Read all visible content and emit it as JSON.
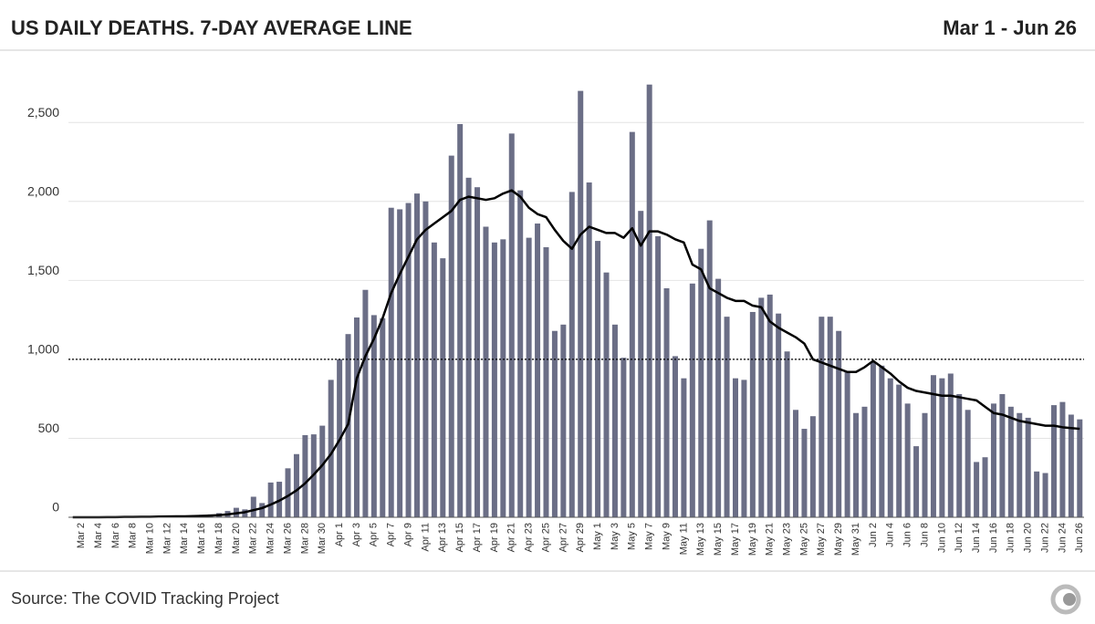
{
  "chart_data": {
    "type": "bar",
    "title": "US DAILY DEATHS. 7-DAY AVERAGE LINE",
    "date_range": "Mar 1 - Jun 26",
    "source": "Source: The COVID Tracking Project",
    "categories": [
      null,
      "Mar 2",
      null,
      "Mar 4",
      null,
      "Mar 6",
      null,
      "Mar 8",
      null,
      "Mar 10",
      null,
      "Mar 12",
      null,
      "Mar 14",
      null,
      "Mar 16",
      null,
      "Mar 18",
      null,
      "Mar 20",
      null,
      "Mar 22",
      null,
      "Mar 24",
      null,
      "Mar 26",
      null,
      "Mar 28",
      null,
      "Mar 30",
      null,
      "Apr 1",
      null,
      "Apr 3",
      null,
      "Apr 5",
      null,
      "Apr 7",
      null,
      "Apr 9",
      null,
      "Apr 11",
      null,
      "Apr 13",
      null,
      "Apr 15",
      null,
      "Apr 17",
      null,
      "Apr 19",
      null,
      "Apr 21",
      null,
      "Apr 23",
      null,
      "Apr 25",
      null,
      "Apr 27",
      null,
      "Apr 29",
      null,
      "May 1",
      null,
      "May 3",
      null,
      "May 5",
      null,
      "May 7",
      null,
      "May 9",
      null,
      "May 11",
      null,
      "May 13",
      null,
      "May 15",
      null,
      "May 17",
      null,
      "May 19",
      null,
      "May 21",
      null,
      "May 23",
      null,
      "May 25",
      null,
      "May 27",
      null,
      "May 29",
      null,
      "May 31",
      null,
      "Jun 2",
      null,
      "Jun 4",
      null,
      "Jun 6",
      null,
      "Jun 8",
      null,
      "Jun 10",
      null,
      "Jun 12",
      null,
      "Jun 14",
      null,
      "Jun 16",
      null,
      "Jun 18",
      null,
      "Jun 20",
      null,
      "Jun 22",
      null,
      "Jun 24",
      null,
      "Jun 26"
    ],
    "series": [
      {
        "type": "bar",
        "color": "#6b6e86",
        "values": [
          0,
          0,
          1,
          1,
          2,
          3,
          2,
          4,
          4,
          5,
          6,
          7,
          9,
          8,
          10,
          15,
          18,
          26,
          40,
          60,
          50,
          130,
          90,
          220,
          225,
          310,
          400,
          520,
          525,
          580,
          870,
          1000,
          1160,
          1265,
          1440,
          1280,
          1260,
          1960,
          1950,
          1990,
          2050,
          2000,
          1740,
          1640,
          2290,
          2490,
          2150,
          2090,
          1840,
          1740,
          1760,
          2430,
          2070,
          1770,
          1860,
          1710,
          1180,
          1220,
          2060,
          2700,
          2120,
          1750,
          1550,
          1220,
          1010,
          2440,
          1940,
          2740,
          1780,
          1450,
          1020,
          880,
          1480,
          1700,
          1880,
          1510,
          1270,
          880,
          870,
          1300,
          1390,
          1410,
          1290,
          1050,
          680,
          560,
          640,
          1270,
          1270,
          1180,
          920,
          660,
          700,
          980,
          960,
          880,
          840,
          720,
          450,
          660,
          900,
          880,
          910,
          780,
          680,
          350,
          380,
          720,
          780,
          700,
          660,
          630,
          290,
          280,
          710,
          730,
          650,
          620
        ]
      },
      {
        "type": "line",
        "color": "#000000",
        "values": [
          0,
          0,
          0,
          0,
          1,
          1,
          2,
          2,
          3,
          3,
          4,
          5,
          6,
          6,
          7,
          9,
          11,
          14,
          18,
          25,
          32,
          45,
          58,
          80,
          105,
          135,
          170,
          215,
          270,
          330,
          400,
          490,
          590,
          880,
          1020,
          1130,
          1260,
          1420,
          1540,
          1650,
          1760,
          1820,
          1860,
          1900,
          1940,
          2010,
          2030,
          2020,
          2010,
          2020,
          2050,
          2070,
          2030,
          1960,
          1920,
          1900,
          1820,
          1750,
          1700,
          1790,
          1840,
          1820,
          1800,
          1800,
          1770,
          1830,
          1720,
          1810,
          1810,
          1790,
          1760,
          1740,
          1600,
          1570,
          1450,
          1420,
          1390,
          1370,
          1370,
          1340,
          1330,
          1240,
          1200,
          1170,
          1140,
          1100,
          1000,
          980,
          960,
          940,
          920,
          920,
          950,
          990,
          950,
          910,
          860,
          820,
          800,
          790,
          780,
          770,
          770,
          760,
          750,
          740,
          700,
          660,
          650,
          630,
          610,
          600,
          590,
          580,
          580,
          570,
          565,
          560
        ]
      }
    ],
    "ylim": [
      0,
      2900
    ],
    "yticks": [
      0,
      500,
      {
        "value": 1000,
        "label": "1,000"
      },
      {
        "value": 1500,
        "label": "1,500"
      },
      {
        "value": 2000,
        "label": "2,000"
      },
      {
        "value": 2500,
        "label": "2,500"
      }
    ],
    "reference_line": 1000,
    "grid": true
  }
}
